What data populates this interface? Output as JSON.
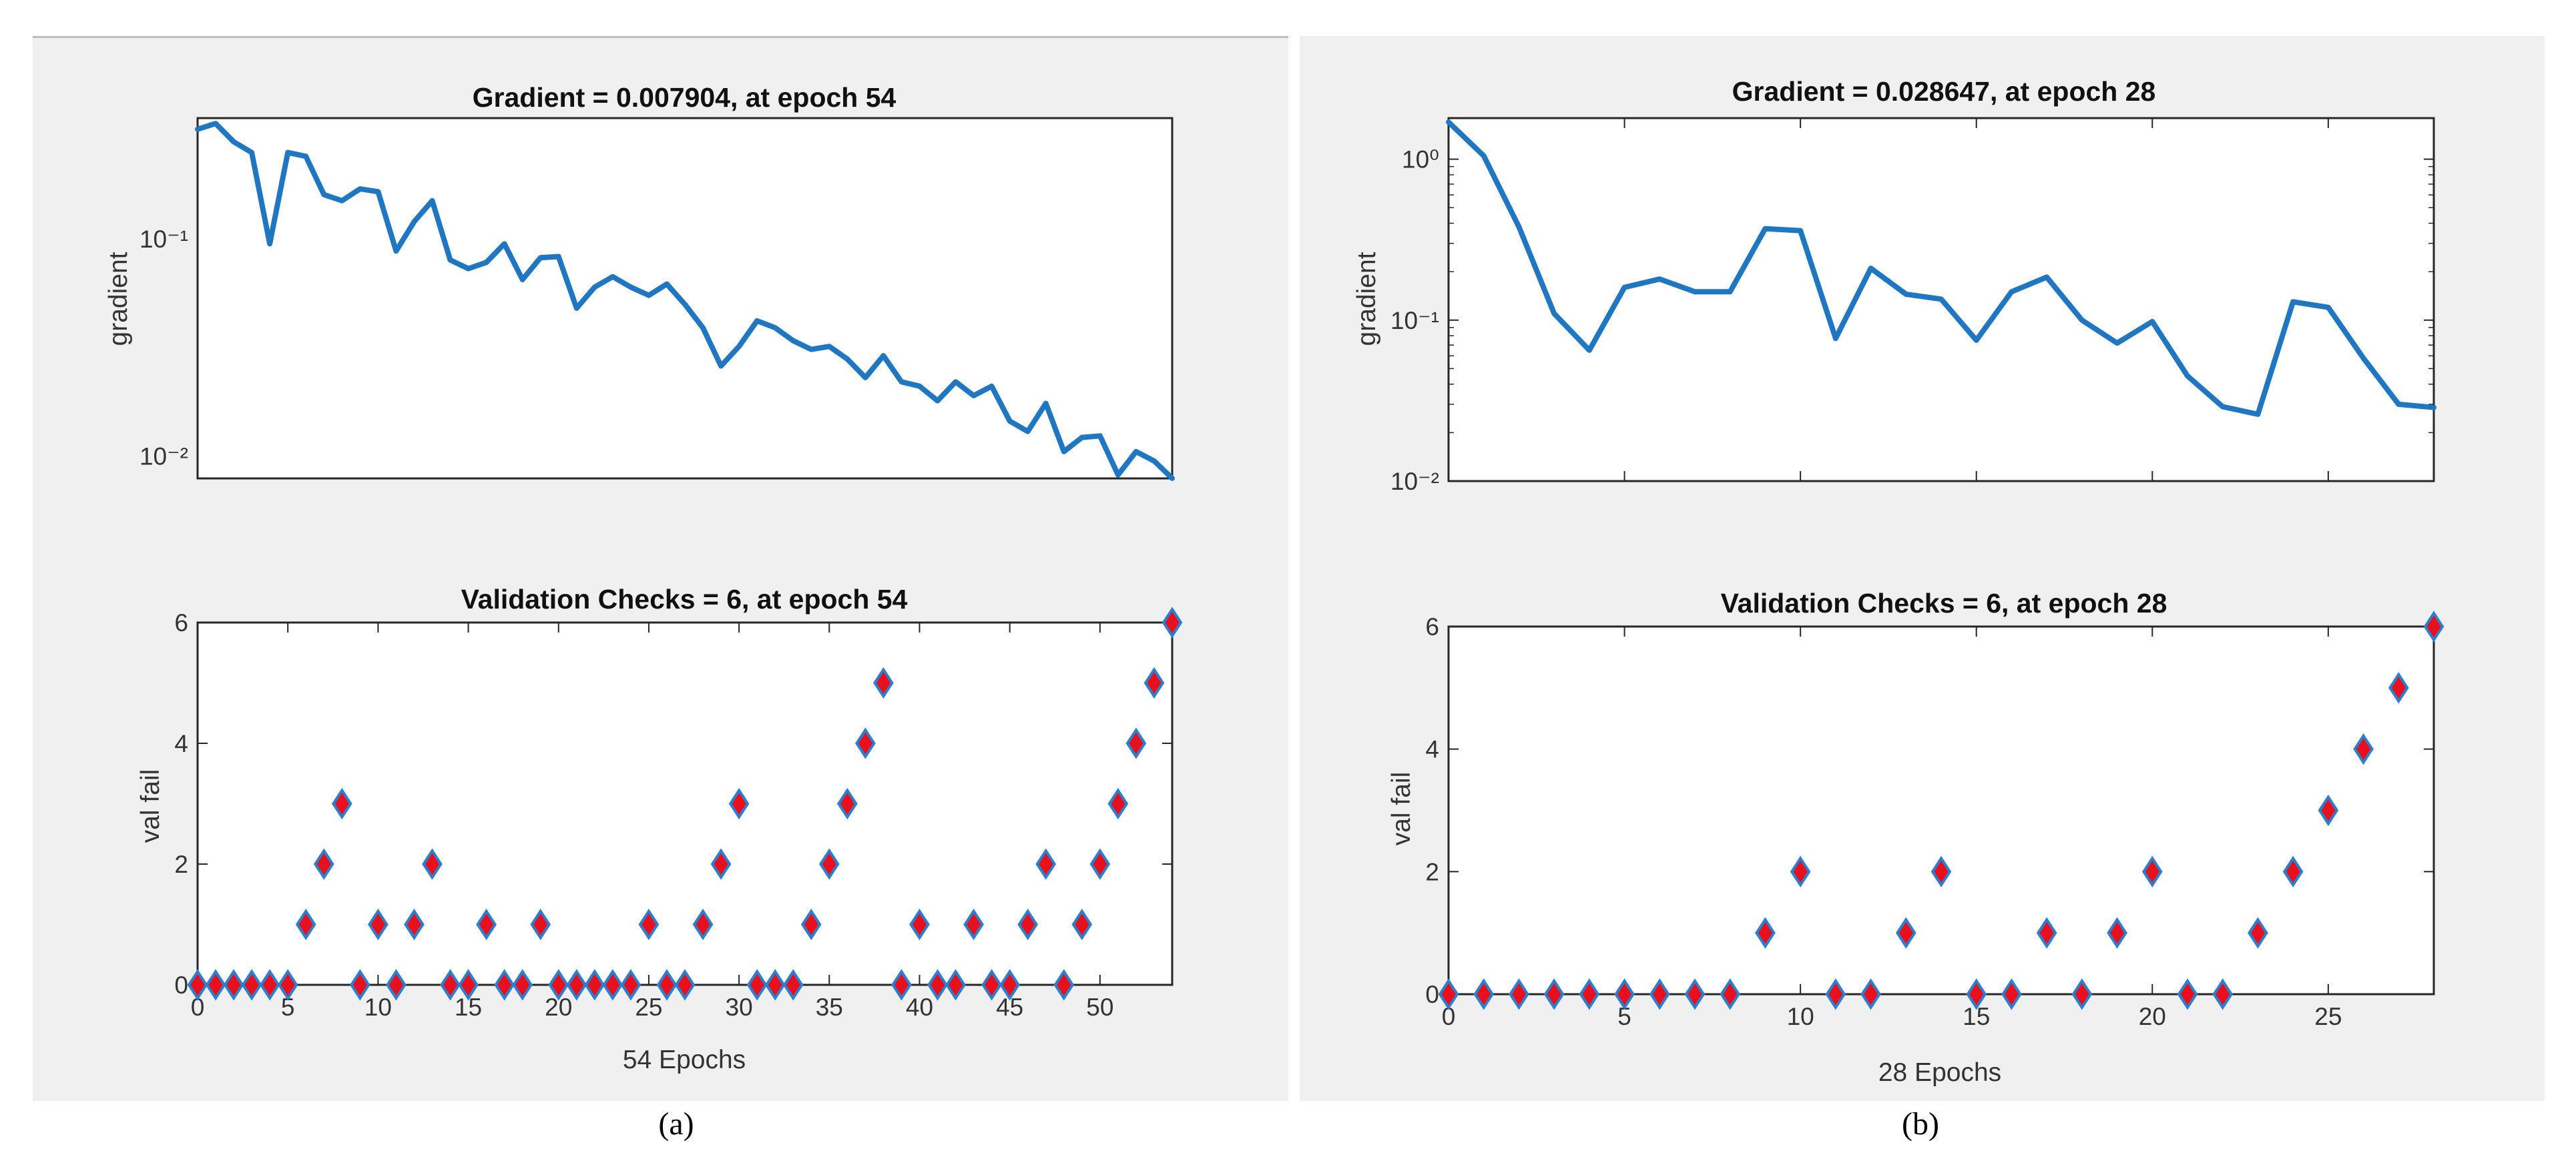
{
  "figure": {
    "caption_a": "(a)",
    "caption_b": "(b)"
  },
  "colors": {
    "line": "#1f77c4",
    "marker_face": "#e8101c",
    "marker_edge": "#2b7fd0",
    "axes": "#262626",
    "panel": "#f0f0f0"
  },
  "chart_data": [
    {
      "id": "a-gradient",
      "type": "line",
      "title": "Gradient = 0.007904, at epoch 54",
      "xlabel": "",
      "ylabel": "gradient",
      "yscale": "log",
      "xlim": [
        0,
        54
      ],
      "ylim": [
        0.0079,
        0.36
      ],
      "ytick_values": [
        0.01,
        0.1
      ],
      "ytick_labels": [
        "10⁻²",
        "10⁻¹"
      ],
      "xtick_values": [
        5,
        10,
        15,
        20,
        25,
        30,
        35,
        40,
        45,
        50
      ],
      "xtick_labels": [],
      "x": [
        0,
        1,
        2,
        3,
        4,
        5,
        6,
        7,
        8,
        9,
        10,
        11,
        12,
        13,
        14,
        15,
        16,
        17,
        18,
        19,
        20,
        21,
        22,
        23,
        24,
        25,
        26,
        27,
        28,
        29,
        30,
        31,
        32,
        33,
        34,
        35,
        36,
        37,
        38,
        39,
        40,
        41,
        42,
        43,
        44,
        45,
        46,
        47,
        48,
        49,
        50,
        51,
        52,
        53,
        54
      ],
      "y": [
        0.32,
        0.34,
        0.28,
        0.25,
        0.095,
        0.25,
        0.24,
        0.16,
        0.15,
        0.17,
        0.165,
        0.088,
        0.12,
        0.15,
        0.08,
        0.073,
        0.078,
        0.095,
        0.065,
        0.082,
        0.083,
        0.048,
        0.06,
        0.067,
        0.06,
        0.055,
        0.062,
        0.05,
        0.039,
        0.026,
        0.032,
        0.042,
        0.039,
        0.034,
        0.031,
        0.032,
        0.028,
        0.023,
        0.029,
        0.022,
        0.021,
        0.018,
        0.022,
        0.019,
        0.021,
        0.0145,
        0.013,
        0.0175,
        0.0105,
        0.0122,
        0.0124,
        0.0082,
        0.0105,
        0.0095,
        0.007904
      ]
    },
    {
      "id": "a-valfail",
      "type": "scatter",
      "title": "Validation Checks = 6, at epoch 54",
      "xlabel": "54 Epochs",
      "ylabel": "val fail",
      "xlim": [
        0,
        54
      ],
      "ylim": [
        0,
        6
      ],
      "ytick_values": [
        0,
        2,
        4,
        6
      ],
      "ytick_labels": [
        "0",
        "2",
        "4",
        "6"
      ],
      "xtick_values": [
        0,
        5,
        10,
        15,
        20,
        25,
        30,
        35,
        40,
        45,
        50
      ],
      "xtick_labels": [
        "0",
        "5",
        "10",
        "15",
        "20",
        "25",
        "30",
        "35",
        "40",
        "45",
        "50"
      ],
      "x": [
        0,
        1,
        2,
        3,
        4,
        5,
        6,
        7,
        8,
        9,
        10,
        11,
        12,
        13,
        14,
        15,
        16,
        17,
        18,
        19,
        20,
        21,
        22,
        23,
        24,
        25,
        26,
        27,
        28,
        29,
        30,
        31,
        32,
        33,
        34,
        35,
        36,
        37,
        38,
        39,
        40,
        41,
        42,
        43,
        44,
        45,
        46,
        47,
        48,
        49,
        50,
        51,
        52,
        53,
        54
      ],
      "y": [
        0,
        0,
        0,
        0,
        0,
        0,
        1,
        2,
        3,
        0,
        1,
        0,
        1,
        2,
        0,
        0,
        1,
        0,
        0,
        1,
        0,
        0,
        0,
        0,
        0,
        1,
        0,
        0,
        1,
        2,
        3,
        0,
        0,
        0,
        1,
        2,
        3,
        4,
        5,
        0,
        1,
        0,
        0,
        1,
        0,
        0,
        1,
        2,
        0,
        1,
        2,
        3,
        4,
        5,
        6
      ]
    },
    {
      "id": "b-gradient",
      "type": "line",
      "title": "Gradient = 0.028647, at epoch 28",
      "xlabel": "",
      "ylabel": "gradient",
      "yscale": "log",
      "xlim": [
        0,
        28
      ],
      "ylim": [
        0.01,
        1.8
      ],
      "ytick_values": [
        0.01,
        0.1,
        1
      ],
      "ytick_labels": [
        "10⁻²",
        "10⁻¹",
        "10⁰"
      ],
      "xtick_values": [
        5,
        10,
        15,
        20,
        25
      ],
      "xtick_labels": [],
      "x": [
        0,
        1,
        2,
        3,
        4,
        5,
        6,
        7,
        8,
        9,
        10,
        11,
        12,
        13,
        14,
        15,
        16,
        17,
        18,
        19,
        20,
        21,
        22,
        23,
        24,
        25,
        26,
        27,
        28
      ],
      "y": [
        1.7,
        1.05,
        0.38,
        0.11,
        0.065,
        0.16,
        0.18,
        0.15,
        0.15,
        0.37,
        0.36,
        0.077,
        0.21,
        0.145,
        0.135,
        0.075,
        0.15,
        0.185,
        0.1,
        0.072,
        0.098,
        0.045,
        0.029,
        0.026,
        0.13,
        0.12,
        0.058,
        0.03,
        0.028647
      ]
    },
    {
      "id": "b-valfail",
      "type": "scatter",
      "title": "Validation Checks = 6, at epoch 28",
      "xlabel": "28 Epochs",
      "ylabel": "val fail",
      "xlim": [
        0,
        28
      ],
      "ylim": [
        0,
        6
      ],
      "ytick_values": [
        0,
        2,
        4,
        6
      ],
      "ytick_labels": [
        "0",
        "2",
        "4",
        "6"
      ],
      "xtick_values": [
        0,
        5,
        10,
        15,
        20,
        25
      ],
      "xtick_labels": [
        "0",
        "5",
        "10",
        "15",
        "20",
        "25"
      ],
      "x": [
        0,
        1,
        2,
        3,
        4,
        5,
        6,
        7,
        8,
        9,
        10,
        11,
        12,
        13,
        14,
        15,
        16,
        17,
        18,
        19,
        20,
        21,
        22,
        23,
        24,
        25,
        26,
        27,
        28
      ],
      "y": [
        0,
        0,
        0,
        0,
        0,
        0,
        0,
        0,
        0,
        1,
        2,
        0,
        0,
        1,
        2,
        0,
        0,
        1,
        0,
        1,
        2,
        0,
        0,
        1,
        2,
        3,
        4,
        5,
        6
      ]
    }
  ]
}
